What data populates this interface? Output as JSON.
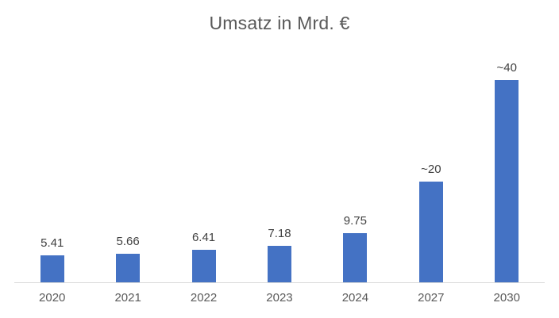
{
  "chart_data": {
    "type": "bar",
    "title": "Umsatz in Mrd. €",
    "categories": [
      "2020",
      "2021",
      "2022",
      "2023",
      "2024",
      "2027",
      "2030"
    ],
    "values": [
      5.41,
      5.66,
      6.41,
      7.18,
      9.75,
      20,
      40
    ],
    "value_labels": [
      "5.41",
      "5.66",
      "6.41",
      "7.18",
      "9.75",
      "~20",
      "~40"
    ],
    "xlabel": "",
    "ylabel": "",
    "ylim": [
      0,
      45
    ],
    "grid": false,
    "legend": false,
    "y_axis_visible": false,
    "colors": {
      "bar": "#4472c4",
      "title": "#595959",
      "data_label": "#404040",
      "tick_label": "#595959",
      "axis_line": "#d9d9d9",
      "background": "#ffffff"
    }
  }
}
